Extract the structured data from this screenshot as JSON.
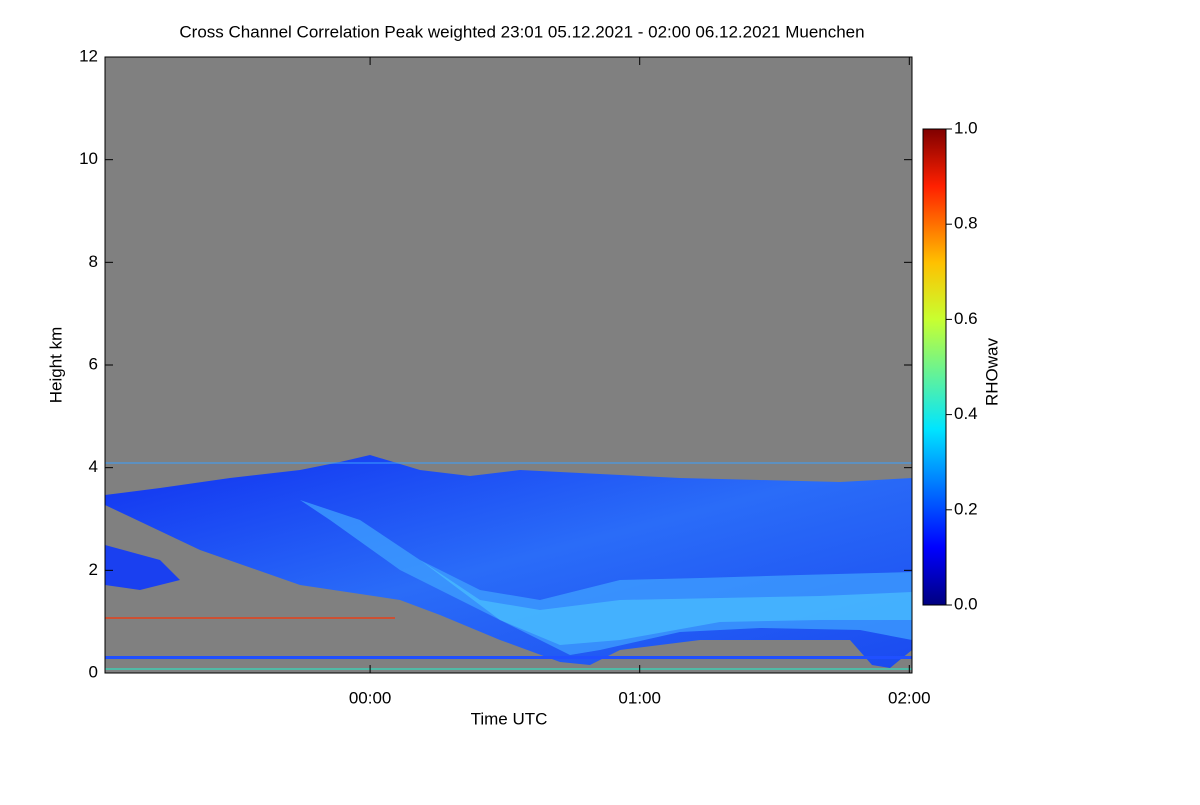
{
  "chart_data": {
    "type": "heatmap",
    "title": "Cross Channel Correlation Peak weighted   23:01 05.12.2021 - 02:00 06.12.2021 Muenchen",
    "x_label": "Time UTC",
    "y_label": "Height km",
    "colorbar_label": "RHOwav",
    "xlim": [
      23.0167,
      26.01
    ],
    "xticks": [
      {
        "value": 24,
        "label": "00:00"
      },
      {
        "value": 25,
        "label": "01:00"
      },
      {
        "value": 26,
        "label": "02:00"
      }
    ],
    "ylim": [
      0,
      12
    ],
    "yticks": [
      0,
      2,
      4,
      6,
      8,
      10,
      12
    ],
    "clim": [
      0,
      1
    ],
    "cticks": [
      {
        "value": 0,
        "label": "0.0"
      },
      {
        "value": 0.2,
        "label": "0.2"
      },
      {
        "value": 0.4,
        "label": "0.4"
      },
      {
        "value": 0.6,
        "label": "0.6"
      },
      {
        "value": 0.8,
        "label": "0.8"
      },
      {
        "value": 1,
        "label": "1.0"
      }
    ],
    "background": "#808080"
  }
}
